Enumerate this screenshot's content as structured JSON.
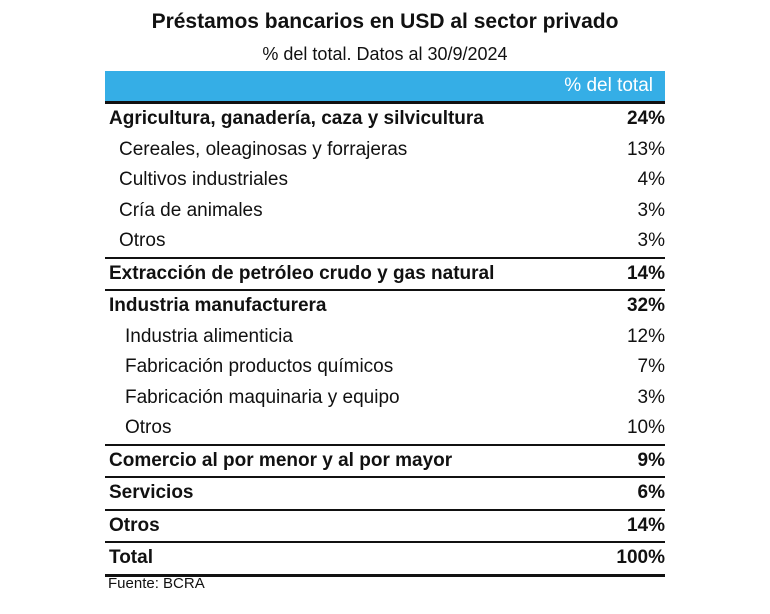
{
  "title": "Préstamos bancarios en USD al sector privado",
  "subtitle": "% del total. Datos al 30/9/2024",
  "column_header": "% del total",
  "rows": [
    {
      "label": "Agricultura, ganadería, caza y silvicultura",
      "value": "24%",
      "level": "main"
    },
    {
      "label": "Cereales, oleaginosas y forrajeras",
      "value": "13%",
      "level": "sub"
    },
    {
      "label": "Cultivos industriales",
      "value": "4%",
      "level": "sub"
    },
    {
      "label": "Cría de animales",
      "value": "3%",
      "level": "sub"
    },
    {
      "label": "Otros",
      "value": "3%",
      "level": "sub"
    },
    {
      "label": "Extracción de petróleo crudo y gas natural",
      "value": "14%",
      "level": "main"
    },
    {
      "label": "Industria manufacturera",
      "value": "32%",
      "level": "main"
    },
    {
      "label": "Industria alimenticia",
      "value": "12%",
      "level": "sub2"
    },
    {
      "label": "Fabricación productos químicos",
      "value": "7%",
      "level": "sub2"
    },
    {
      "label": "Fabricación maquinaria y equipo",
      "value": "3%",
      "level": "sub2"
    },
    {
      "label": "Otros",
      "value": "10%",
      "level": "sub2"
    },
    {
      "label": "Comercio al por menor y al por mayor",
      "value": "9%",
      "level": "main"
    },
    {
      "label": "Servicios",
      "value": "6%",
      "level": "main"
    },
    {
      "label": "Otros",
      "value": "14%",
      "level": "main"
    },
    {
      "label": "Total",
      "value": "100%",
      "level": "total"
    }
  ],
  "source": "Fuente: BCRA",
  "colors": {
    "header_bar": "#35aee6",
    "header_text": "#ffffff"
  }
}
